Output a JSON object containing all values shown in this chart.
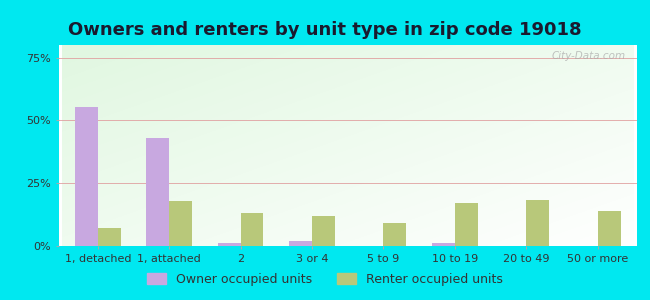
{
  "title": "Owners and renters by unit type in zip code 19018",
  "categories": [
    "1, detached",
    "1, attached",
    "2",
    "3 or 4",
    "5 to 9",
    "10 to 19",
    "20 to 49",
    "50 or more"
  ],
  "owner_values": [
    55.5,
    43.0,
    1.0,
    2.0,
    0.0,
    1.0,
    0.0,
    0.0
  ],
  "renter_values": [
    7.0,
    18.0,
    13.0,
    12.0,
    9.0,
    17.0,
    18.5,
    14.0
  ],
  "owner_color": "#c8a8e0",
  "renter_color": "#b8c87a",
  "outer_bg": "#00e8f0",
  "yticks": [
    0,
    25,
    50,
    75
  ],
  "ylim": [
    0,
    80
  ],
  "bar_width": 0.32,
  "owner_label": "Owner occupied units",
  "renter_label": "Renter occupied units",
  "watermark": "City-Data.com",
  "title_fontsize": 13,
  "tick_fontsize": 8,
  "legend_fontsize": 9
}
